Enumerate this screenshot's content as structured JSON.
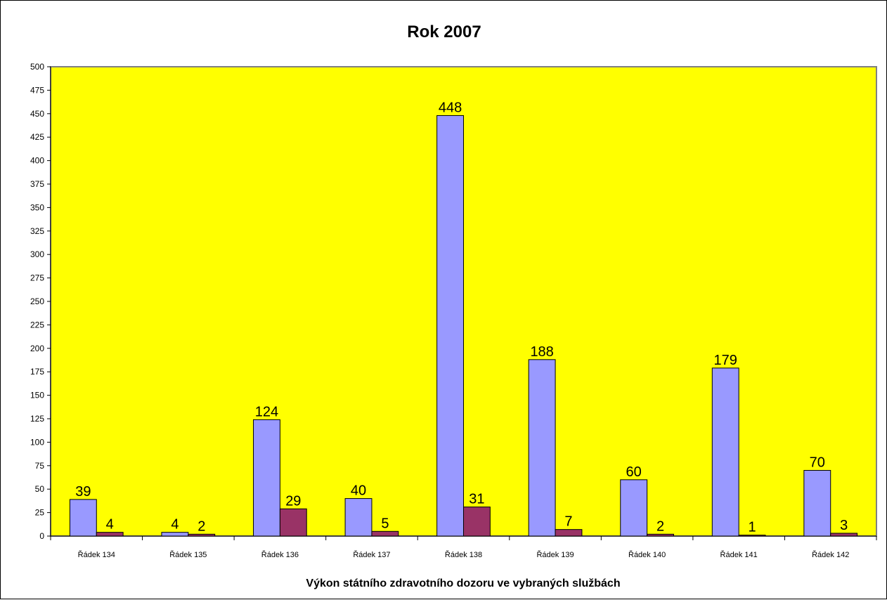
{
  "chart_data": {
    "type": "bar",
    "title": "Rok 2007",
    "xlabel": "Výkon státního zdravotního dozoru ve vybraných službách",
    "ylabel": "",
    "ylim": [
      0,
      500
    ],
    "ytick_step": 25,
    "grid": false,
    "legend": "none",
    "plot_background": "#FFFF00",
    "categories": [
      "Řádek 134",
      "Řádek 135",
      "Řádek 136",
      "Řádek 137",
      "Řádek 138",
      "Řádek 139",
      "Řádek 140",
      "Řádek 141",
      "Řádek 142"
    ],
    "series": [
      {
        "color": "#9999FF",
        "values": [
          39,
          4,
          124,
          40,
          448,
          188,
          60,
          179,
          70
        ]
      },
      {
        "color": "#993366",
        "values": [
          4,
          2,
          29,
          5,
          31,
          7,
          2,
          1,
          3
        ]
      }
    ]
  }
}
